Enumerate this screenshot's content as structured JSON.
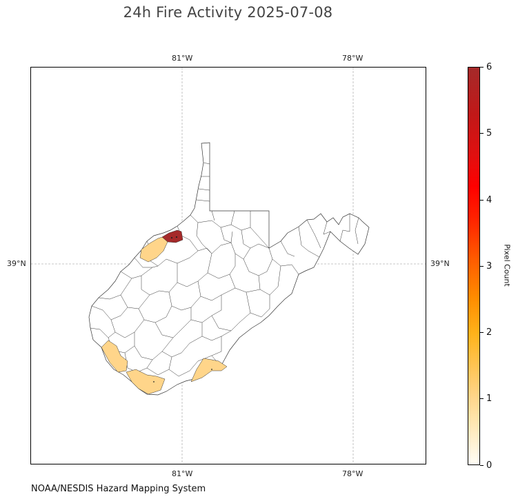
{
  "title": "24h Fire Activity 2025-07-08",
  "credit": "NOAA/NESDIS Hazard Mapping System",
  "map": {
    "gridlines": {
      "longitudes": [
        "81°W",
        "78°W"
      ],
      "latitudes": [
        "39°N"
      ]
    },
    "fill_colors": {
      "none": "#ffffff",
      "one_pixel": "#ffd58a",
      "six_pixels": "#a52a2a"
    },
    "highlighted_counties": [
      {
        "id": "wood-area",
        "pixel_count": 6
      },
      {
        "id": "jackson-area",
        "pixel_count": 1
      },
      {
        "id": "mingo-area",
        "pixel_count": 1
      },
      {
        "id": "mcdowell-area",
        "pixel_count": 1
      },
      {
        "id": "mercer-area",
        "pixel_count": 1
      }
    ]
  },
  "colorbar": {
    "title": "Pixel Count",
    "ticks": [
      "0",
      "1",
      "2",
      "3",
      "4",
      "5",
      "6"
    ],
    "min": 0,
    "max": 6
  }
}
